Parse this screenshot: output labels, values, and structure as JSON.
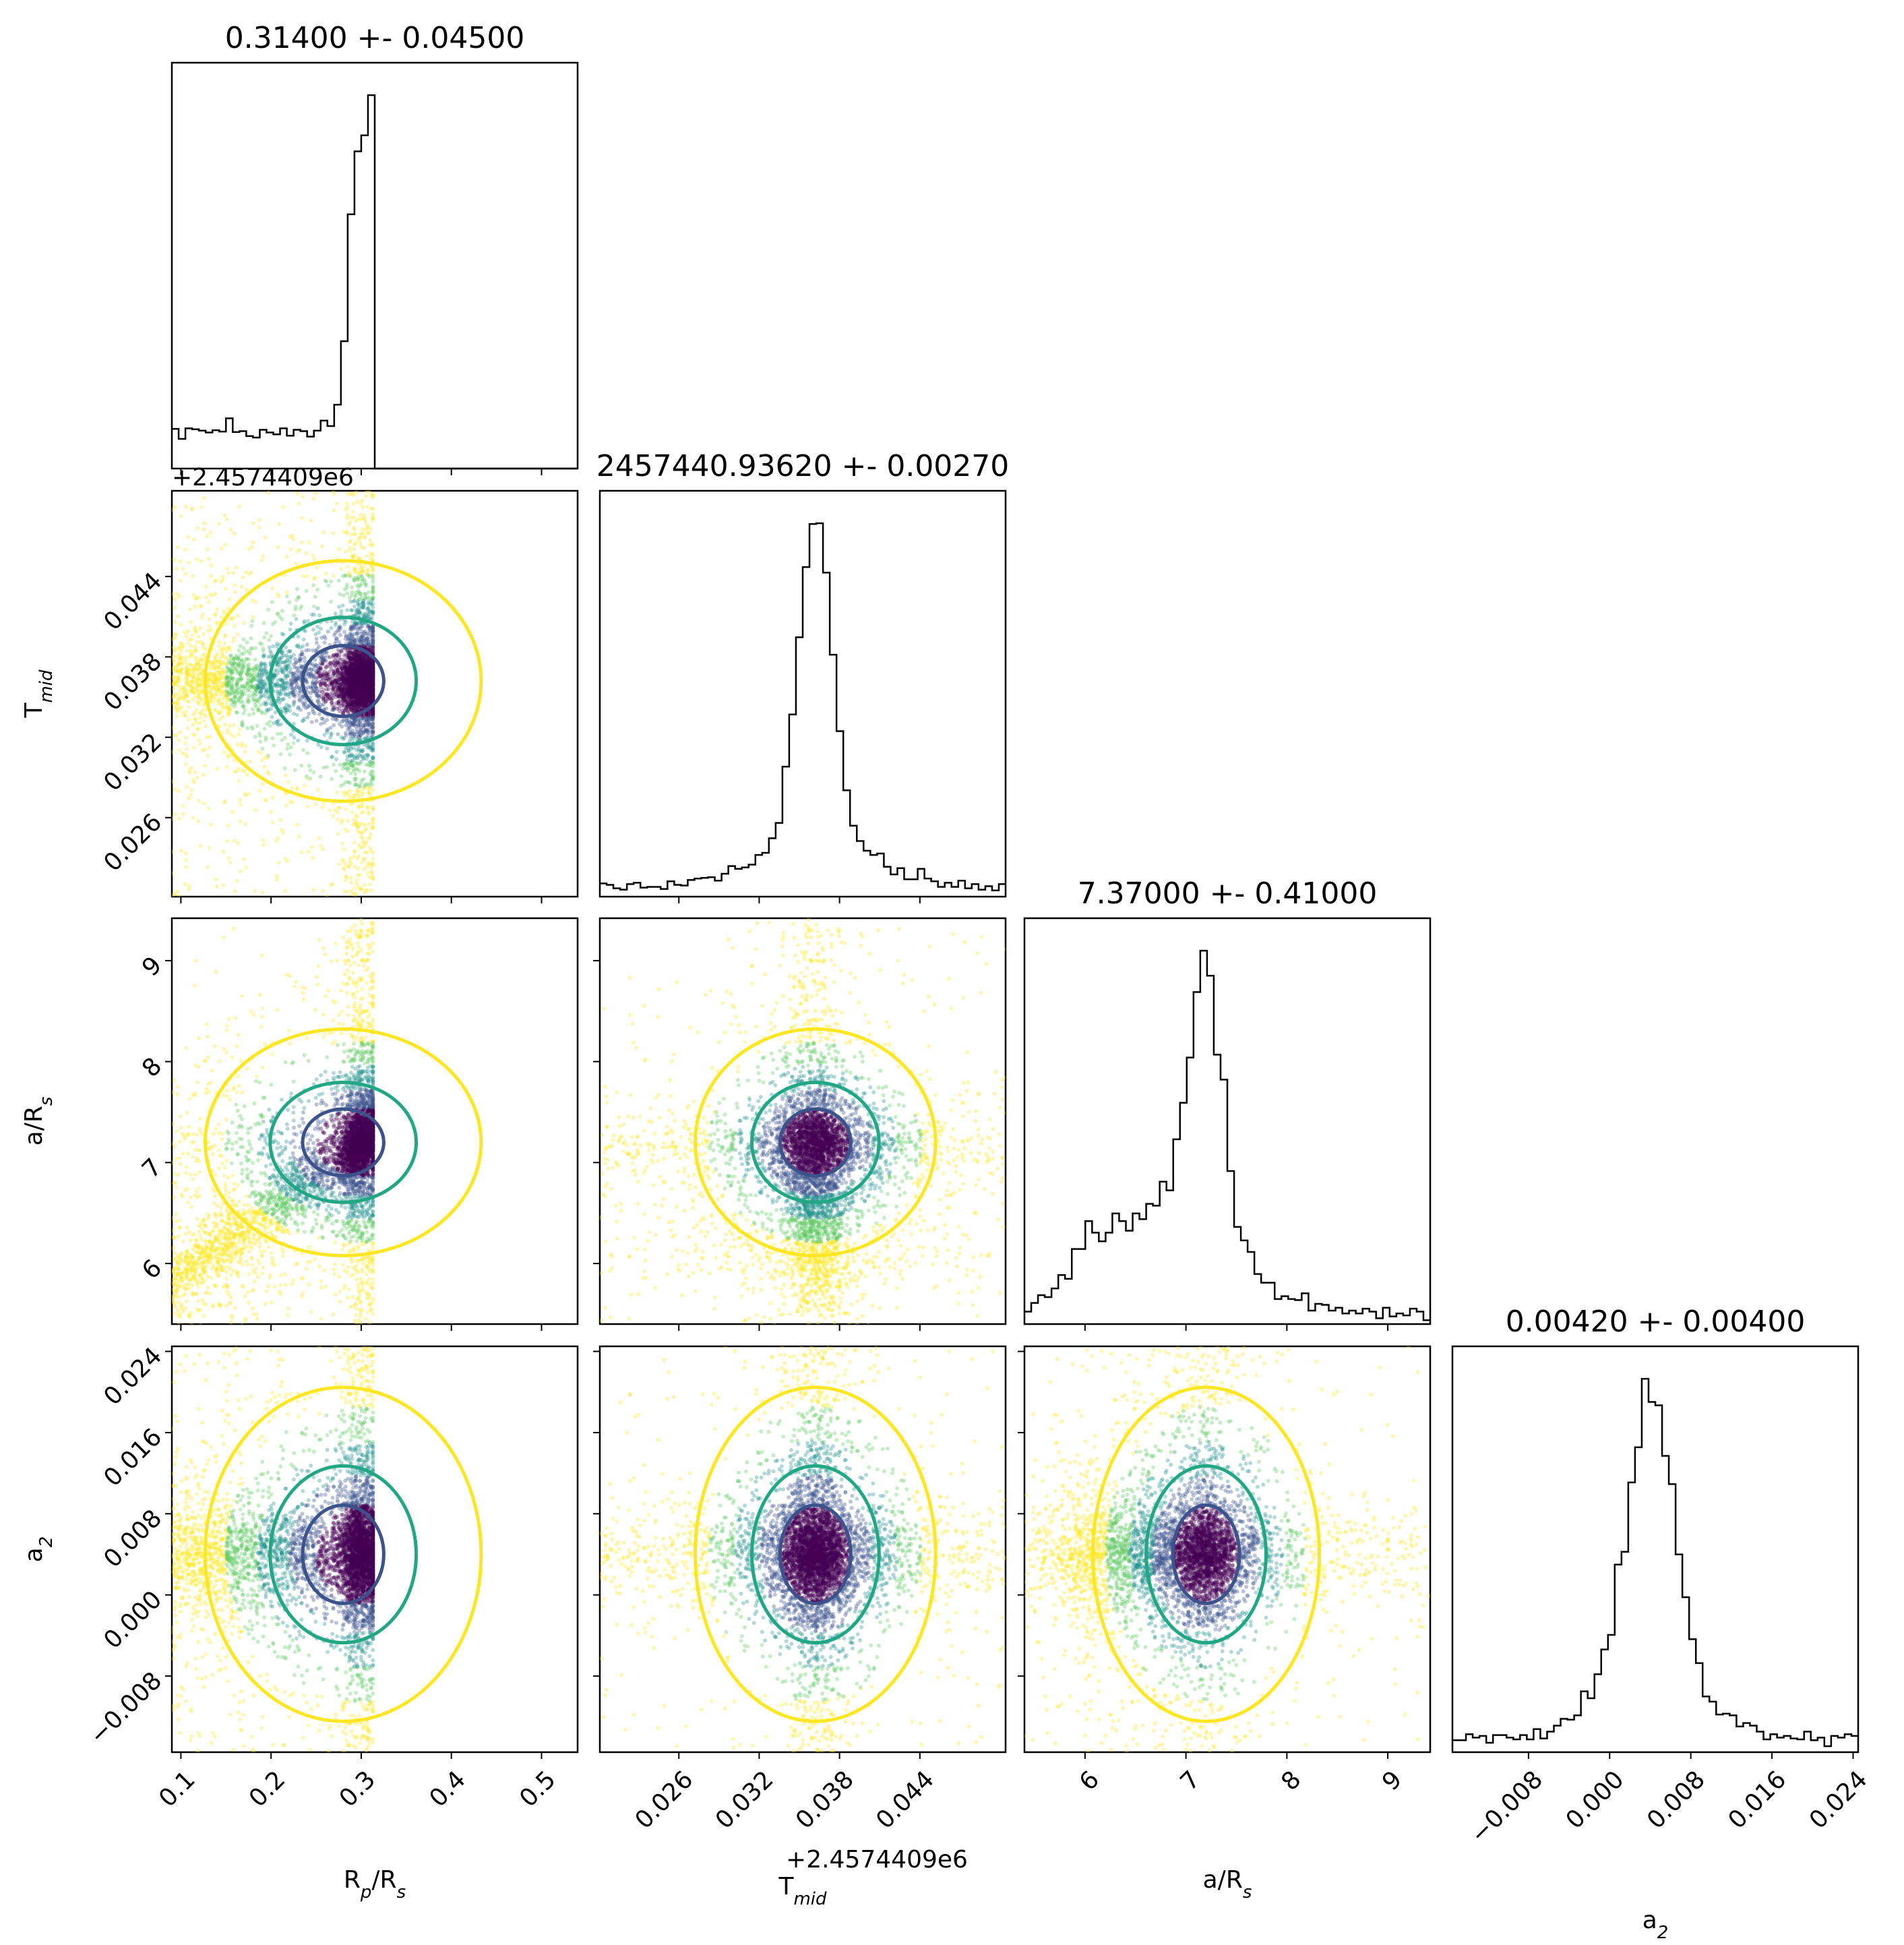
{
  "chart_data": {
    "type": "scatter",
    "panels": [
      "Rp/Rs",
      "Tmid",
      "a/Rs",
      "a2"
    ],
    "titles": [
      "0.31400 +- 0.04500",
      "2457440.93620 +- 0.00270",
      "7.37000 +- 0.41000",
      "0.00420 +- 0.00400"
    ],
    "axis_labels": {
      "rp": {
        "base": "R",
        "sub": "p",
        "tail": "/R",
        "sub2": "s"
      },
      "tmid": {
        "base": "T",
        "sub": "mid"
      },
      "ars": {
        "base": "a/R",
        "sub": "s"
      },
      "a2": {
        "base": "a",
        "sub": "2"
      }
    },
    "offset_text": "+2.4574409e6",
    "ticks": {
      "rp": {
        "values": [
          0.1,
          0.2,
          0.3,
          0.4,
          0.5
        ],
        "labels": [
          "0.1",
          "0.2",
          "0.3",
          "0.4",
          "0.5"
        ]
      },
      "tmid": {
        "values": [
          0.026,
          0.032,
          0.038,
          0.044
        ],
        "labels": [
          "0.026",
          "0.032",
          "0.038",
          "0.044"
        ]
      },
      "ars": {
        "values": [
          6,
          7,
          8,
          9
        ],
        "labels": [
          "6",
          "7",
          "8",
          "9"
        ]
      },
      "a2": {
        "values": [
          -0.008,
          0.0,
          0.008,
          0.016,
          0.024
        ],
        "labels": [
          "−0.008",
          "0.000",
          "0.008",
          "0.016",
          "0.024"
        ]
      }
    },
    "ranges": {
      "rp": [
        0.09,
        0.54
      ],
      "tmid": [
        0.0201,
        0.0504
      ],
      "ars": [
        5.4,
        9.42
      ],
      "a2": [
        -0.0155,
        0.0245
      ]
    },
    "distributions": {
      "rp": {
        "peak": 0.3,
        "sigma": 0.012,
        "upper_cut": 0.313,
        "tail_from": 0.09
      },
      "tmid": {
        "center": 0.0362,
        "sigma": 0.0012,
        "wing": 0.004
      },
      "ars": {
        "center": 7.2,
        "sigma": 0.15,
        "wing": 0.5
      },
      "a2": {
        "center": 0.004,
        "sigma": 0.0022,
        "wing": 0.005
      }
    },
    "contour_levels": [
      "inner",
      "middle",
      "outer"
    ],
    "colors": {
      "hist": "#000000",
      "dense": "#440154",
      "mid": "#3b528b",
      "teal": "#21918c",
      "green": "#5ec962",
      "yellow": "#fde725",
      "contour_inner": "#3b528b",
      "contour_mid": "#21a784",
      "contour_outer": "#fde725"
    }
  }
}
